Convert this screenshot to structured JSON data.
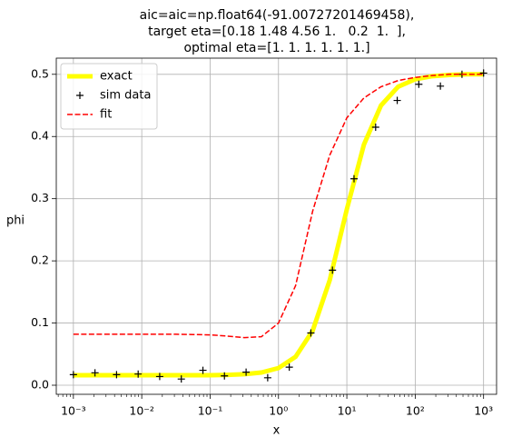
{
  "chart_data": {
    "type": "line",
    "title": [
      "aic=aic=np.float64(-91.00727201469458),",
      "target eta=[0.18 1.48 4.56 1.   0.2  1.  ],",
      "optimal eta=[1. 1. 1. 1. 1. 1.]"
    ],
    "x_label": "x",
    "y_label": "phi",
    "xscale": "log",
    "xlim": [
      0.000562,
      1549
    ],
    "ylim": [
      -0.0146,
      0.526
    ],
    "xticks": [
      {
        "value": 0.001,
        "label": "10⁻³"
      },
      {
        "value": 0.01,
        "label": "10⁻²"
      },
      {
        "value": 0.1,
        "label": "10⁻¹"
      },
      {
        "value": 1,
        "label": "10⁰"
      },
      {
        "value": 10,
        "label": "10¹"
      },
      {
        "value": 100,
        "label": "10²"
      },
      {
        "value": 1000,
        "label": "10³"
      }
    ],
    "yticks": [
      {
        "value": 0,
        "label": "0.0"
      },
      0.1,
      0.2,
      0.3,
      0.4,
      0.5
    ],
    "grid": true,
    "legend": "upper left",
    "series": [
      {
        "name": "exact",
        "color": "#ffff00",
        "style": "solid",
        "x": [
          0.001,
          0.001778,
          0.003162,
          0.005623,
          0.01,
          0.01778,
          0.03162,
          0.05623,
          0.1,
          0.1778,
          0.3162,
          0.5623,
          1,
          1.778,
          3.162,
          5.623,
          10,
          17.78,
          31.62,
          56.23,
          100,
          177.8,
          316.2,
          562.3,
          1000
        ],
        "values": [
          0.016,
          0.016,
          0.016,
          0.016,
          0.016,
          0.016,
          0.016,
          0.016,
          0.016,
          0.0166,
          0.0177,
          0.0204,
          0.0276,
          0.0457,
          0.0877,
          0.169,
          0.283,
          0.387,
          0.45,
          0.48,
          0.492,
          0.497,
          0.499,
          0.5,
          0.5
        ]
      },
      {
        "name": "sim data",
        "color": "#000000",
        "style": "plus",
        "x": [
          0.001,
          0.00207,
          0.00428,
          0.00886,
          0.0183,
          0.0379,
          0.0785,
          0.162,
          0.336,
          0.695,
          1.438,
          2.976,
          6.158,
          12.74,
          26.37,
          54.56,
          112.9,
          233.6,
          483.3,
          1000
        ],
        "values": [
          0.017,
          0.02,
          0.017,
          0.018,
          0.014,
          0.01,
          0.024,
          0.015,
          0.021,
          0.012,
          0.029,
          0.084,
          0.185,
          0.332,
          0.415,
          0.458,
          0.484,
          0.481,
          0.5,
          0.502
        ]
      },
      {
        "name": "fit",
        "color": "#ff0000",
        "style": "dashed",
        "x": [
          0.001,
          0.001778,
          0.003162,
          0.005623,
          0.01,
          0.01778,
          0.03162,
          0.05623,
          0.1,
          0.1778,
          0.3162,
          0.5623,
          1,
          1.778,
          3.162,
          5.623,
          10,
          17.78,
          31.62,
          56.23,
          100,
          177.8,
          316.2,
          562.3,
          1000
        ],
        "values": [
          0.082,
          0.082,
          0.082,
          0.082,
          0.082,
          0.082,
          0.082,
          0.0815,
          0.081,
          0.079,
          0.0765,
          0.078,
          0.1,
          0.16,
          0.28,
          0.37,
          0.43,
          0.462,
          0.48,
          0.49,
          0.495,
          0.498,
          0.5,
          0.5,
          0.5
        ]
      }
    ]
  }
}
